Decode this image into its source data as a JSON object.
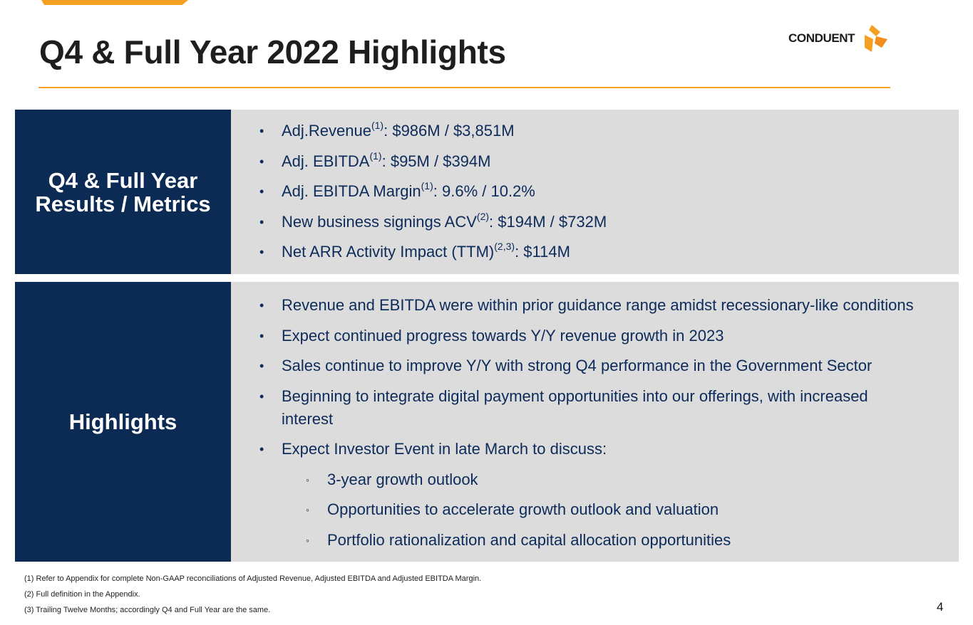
{
  "slide": {
    "title": "Q4 & Full Year 2022 Highlights",
    "page_number": "4",
    "accent_color": "#f5a020",
    "navy_color": "#0b2a54",
    "panel_bg": "#dcdcdc"
  },
  "logo": {
    "text": "CONDUENT",
    "icon": "conduent-logo-icon"
  },
  "metrics": {
    "label": "Q4 & Full Year Results / Metrics",
    "items": [
      {
        "text": "Adj.Revenue",
        "sup": "(1)",
        "rest": ":  $986M / $3,851M"
      },
      {
        "text": "Adj. EBITDA",
        "sup": "(1)",
        "rest": ": $95M / $394M"
      },
      {
        "text": "Adj. EBITDA Margin",
        "sup": "(1)",
        "rest": ": 9.6% / 10.2%"
      },
      {
        "text": "New business signings ACV",
        "sup": "(2)",
        "rest": ":  $194M / $732M"
      },
      {
        "text": "Net ARR Activity Impact (TTM)",
        "sup": "(2,3)",
        "rest": ": $114M"
      }
    ]
  },
  "highlights": {
    "label": "Highlights",
    "items": [
      "Revenue and EBITDA were within prior guidance range amidst recessionary-like conditions",
      "Expect continued progress towards Y/Y revenue growth in 2023",
      "Sales continue to improve Y/Y with strong Q4 performance in the Government Sector",
      "Beginning to integrate digital payment opportunities into our offerings, with increased interest",
      "Expect Investor Event in late March to discuss:"
    ],
    "subitems": [
      "3-year growth outlook",
      "Opportunities to accelerate growth outlook and valuation",
      "Portfolio rationalization and capital allocation opportunities"
    ]
  },
  "footnotes": [
    "(1) Refer to Appendix for complete Non-GAAP reconciliations of Adjusted Revenue, Adjusted EBITDA and  Adjusted EBITDA Margin.",
    "(2) Full definition in the Appendix.",
    "(3) Trailing Twelve Months; accordingly Q4 and Full Year are the same."
  ],
  "bullet_glyph": "•",
  "sub_bullet_glyph": "◦"
}
